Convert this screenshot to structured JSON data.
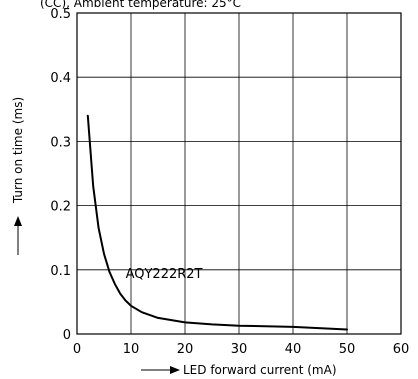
{
  "header": {
    "partial_title": "(CC), Ambient temperature: 25°C"
  },
  "chart_data": {
    "type": "line",
    "xlabel": "LED forward current (mA)",
    "ylabel": "Turn on time (ms)",
    "xlim": [
      0,
      60
    ],
    "ylim": [
      0,
      0.5
    ],
    "x_ticks": [
      0,
      10,
      20,
      30,
      40,
      50,
      60
    ],
    "y_ticks": [
      0,
      0.1,
      0.2,
      0.3,
      0.4,
      0.5
    ],
    "y_tick_labels": [
      "0",
      "0.1",
      "0.2",
      "0.3",
      "0.4",
      "0.5"
    ],
    "grid": true,
    "series": [
      {
        "name": "AQY222R2T",
        "x": [
          2,
          3,
          4,
          5,
          6,
          7,
          8,
          9,
          10,
          12,
          15,
          20,
          25,
          30,
          40,
          50
        ],
        "y": [
          0.34,
          0.23,
          0.165,
          0.125,
          0.097,
          0.078,
          0.063,
          0.052,
          0.044,
          0.034,
          0.025,
          0.018,
          0.015,
          0.013,
          0.011,
          0.007
        ]
      }
    ],
    "annotations": [
      {
        "text": "AQY222R2T",
        "x": 9,
        "y": 0.087
      }
    ]
  }
}
